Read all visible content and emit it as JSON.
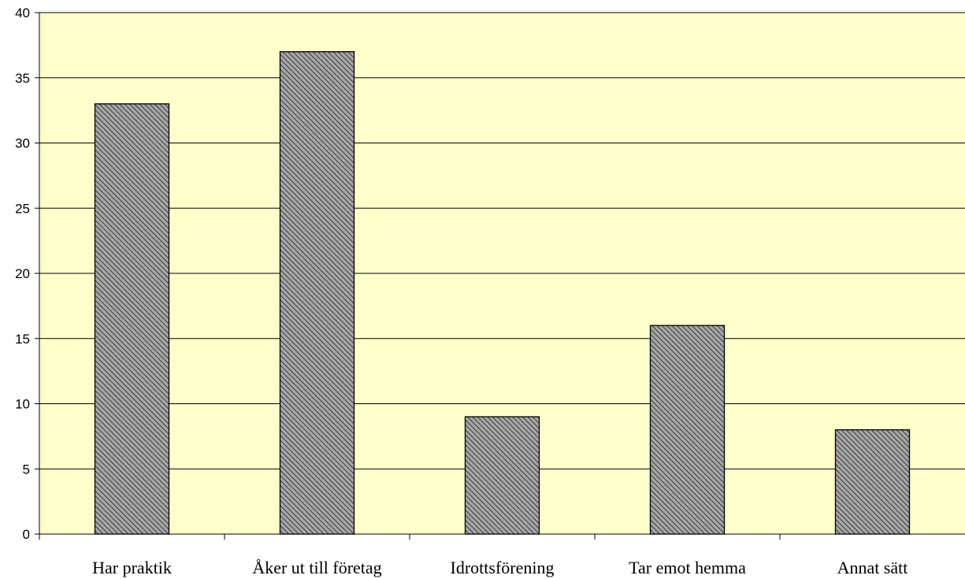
{
  "chart_data": {
    "type": "bar",
    "title": "",
    "xlabel": "",
    "ylabel": "",
    "categories": [
      "Har praktik",
      "Åker ut till företag",
      "Idrottsförening",
      "Tar emot hemma",
      "Annat sätt"
    ],
    "values": [
      33,
      37,
      9,
      16,
      8
    ],
    "ylim": [
      0,
      40
    ],
    "yticks": [
      0,
      5,
      10,
      15,
      20,
      25,
      30,
      35,
      40
    ],
    "grid": true,
    "legend": "none"
  },
  "colors": {
    "plot_background": "#ffffcc",
    "bar_fill": "#a6a6a6",
    "bar_hatch": "#000000",
    "gridline": "#000000",
    "axis": "#000000"
  }
}
